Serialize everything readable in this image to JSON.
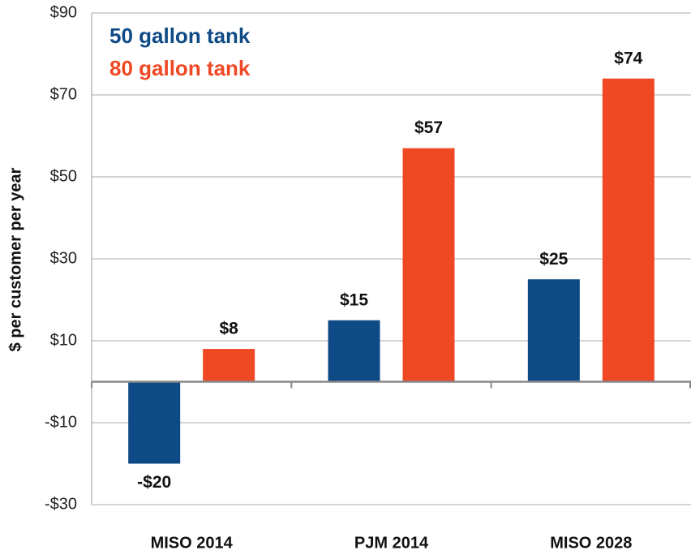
{
  "chart_data": {
    "type": "bar",
    "y_label": "$ per customer per year",
    "categories": [
      "MISO 2014",
      "PJM 2014",
      "MISO 2028"
    ],
    "series": [
      {
        "name": "50 gallon tank",
        "color": "#0e4a86",
        "values": [
          -20,
          15,
          25
        ],
        "value_labels": [
          "-$20",
          "$15",
          "$25"
        ]
      },
      {
        "name": "80 gallon tank",
        "color": "#ef4824",
        "values": [
          8,
          57,
          74
        ],
        "value_labels": [
          "$8",
          "$57",
          "$74"
        ]
      }
    ],
    "ylim": [
      -30,
      90
    ],
    "yticks": [
      {
        "value": -30,
        "label": "-$30"
      },
      {
        "value": -10,
        "label": "-$10"
      },
      {
        "value": 10,
        "label": "$10"
      },
      {
        "value": 30,
        "label": "$30"
      },
      {
        "value": 50,
        "label": "$50"
      },
      {
        "value": 70,
        "label": "$70"
      },
      {
        "value": 90,
        "label": "$90"
      }
    ],
    "grid": true,
    "legend": "upper left"
  }
}
